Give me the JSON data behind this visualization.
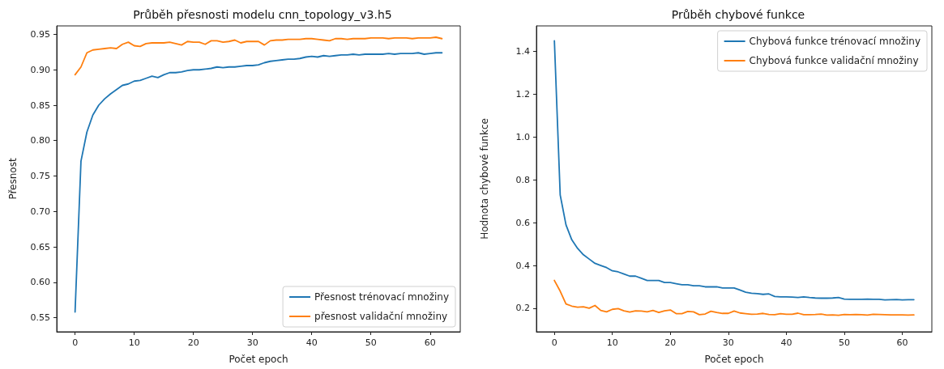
{
  "chart_data": [
    {
      "type": "line",
      "title": "Průběh přesnosti modelu cnn_topology_v3.h5",
      "xlabel": "Počet epoch",
      "ylabel": "Přesnost",
      "x": [
        0,
        1,
        2,
        3,
        4,
        5,
        6,
        7,
        8,
        9,
        10,
        11,
        12,
        13,
        14,
        15,
        16,
        17,
        18,
        19,
        20,
        21,
        22,
        23,
        24,
        25,
        26,
        27,
        28,
        29,
        30,
        31,
        32,
        33,
        34,
        35,
        36,
        37,
        38,
        39,
        40,
        41,
        42,
        43,
        44,
        45,
        46,
        47,
        48,
        49,
        50,
        51,
        52,
        53,
        54,
        55,
        56,
        57,
        58,
        59,
        60,
        61,
        62
      ],
      "series": [
        {
          "name": "Přesnost trénovací množiny",
          "color": "#1f77b4",
          "values": [
            0.558,
            0.771,
            0.812,
            0.836,
            0.85,
            0.859,
            0.866,
            0.872,
            0.878,
            0.88,
            0.884,
            0.885,
            0.888,
            0.891,
            0.889,
            0.893,
            0.896,
            0.896,
            0.897,
            0.899,
            0.9,
            0.9,
            0.901,
            0.902,
            0.904,
            0.903,
            0.904,
            0.904,
            0.905,
            0.906,
            0.906,
            0.907,
            0.91,
            0.912,
            0.913,
            0.914,
            0.915,
            0.915,
            0.916,
            0.918,
            0.919,
            0.918,
            0.92,
            0.919,
            0.92,
            0.921,
            0.921,
            0.922,
            0.921,
            0.922,
            0.922,
            0.922,
            0.922,
            0.923,
            0.922,
            0.923,
            0.923,
            0.923,
            0.924,
            0.922,
            0.923,
            0.924,
            0.924
          ]
        },
        {
          "name": "přesnost validační množiny",
          "color": "#ff7f0e",
          "values": [
            0.893,
            0.904,
            0.924,
            0.928,
            0.929,
            0.93,
            0.931,
            0.93,
            0.936,
            0.939,
            0.934,
            0.933,
            0.937,
            0.938,
            0.938,
            0.938,
            0.939,
            0.937,
            0.935,
            0.94,
            0.939,
            0.939,
            0.936,
            0.941,
            0.941,
            0.939,
            0.94,
            0.942,
            0.938,
            0.94,
            0.94,
            0.94,
            0.935,
            0.941,
            0.942,
            0.942,
            0.943,
            0.943,
            0.943,
            0.944,
            0.944,
            0.943,
            0.942,
            0.941,
            0.944,
            0.944,
            0.943,
            0.944,
            0.944,
            0.944,
            0.945,
            0.945,
            0.945,
            0.944,
            0.945,
            0.945,
            0.945,
            0.944,
            0.945,
            0.945,
            0.945,
            0.946,
            0.944
          ]
        }
      ],
      "xlim": [
        -3.1,
        65.1
      ],
      "xticks": [
        0,
        10,
        20,
        30,
        40,
        50,
        60
      ],
      "ylim": [
        0.53,
        0.962
      ],
      "yticks": [
        0.55,
        {
          "value": 0.6,
          "label": "0.60"
        },
        0.65,
        {
          "value": 0.7,
          "label": "0.70"
        },
        0.75,
        {
          "value": 0.8,
          "label": "0.80"
        },
        0.85,
        {
          "value": 0.9,
          "label": "0.90"
        },
        0.95
      ],
      "grid": false,
      "legend": "bottom right",
      "marker": "none",
      "line_style": "solid"
    },
    {
      "type": "line",
      "title": "Průběh chybové funkce",
      "xlabel": "Počet epoch",
      "ylabel": "Hodnota chybové funkce",
      "x": [
        0,
        1,
        2,
        3,
        4,
        5,
        6,
        7,
        8,
        9,
        10,
        11,
        12,
        13,
        14,
        15,
        16,
        17,
        18,
        19,
        20,
        21,
        22,
        23,
        24,
        25,
        26,
        27,
        28,
        29,
        30,
        31,
        32,
        33,
        34,
        35,
        36,
        37,
        38,
        39,
        40,
        41,
        42,
        43,
        44,
        45,
        46,
        47,
        48,
        49,
        50,
        51,
        52,
        53,
        54,
        55,
        56,
        57,
        58,
        59,
        60,
        61,
        62
      ],
      "series": [
        {
          "name": "Chybová funkce trénovací množiny",
          "color": "#1f77b4",
          "values": [
            1.45,
            0.73,
            0.59,
            0.52,
            0.48,
            0.45,
            0.43,
            0.41,
            0.4,
            0.39,
            0.375,
            0.37,
            0.36,
            0.35,
            0.35,
            0.34,
            0.33,
            0.33,
            0.33,
            0.32,
            0.32,
            0.315,
            0.31,
            0.31,
            0.305,
            0.305,
            0.3,
            0.3,
            0.3,
            0.295,
            0.295,
            0.295,
            0.285,
            0.275,
            0.27,
            0.268,
            0.265,
            0.267,
            0.255,
            0.253,
            0.253,
            0.252,
            0.25,
            0.253,
            0.25,
            0.248,
            0.247,
            0.247,
            0.248,
            0.25,
            0.243,
            0.242,
            0.242,
            0.242,
            0.243,
            0.242,
            0.242,
            0.239,
            0.24,
            0.241,
            0.239,
            0.24,
            0.24
          ]
        },
        {
          "name": "Chybová funkce validační množiny",
          "color": "#ff7f0e",
          "values": [
            0.33,
            0.28,
            0.22,
            0.21,
            0.205,
            0.207,
            0.2,
            0.213,
            0.19,
            0.183,
            0.195,
            0.198,
            0.188,
            0.182,
            0.188,
            0.187,
            0.183,
            0.19,
            0.18,
            0.188,
            0.192,
            0.175,
            0.175,
            0.185,
            0.183,
            0.17,
            0.173,
            0.186,
            0.18,
            0.176,
            0.176,
            0.187,
            0.178,
            0.175,
            0.172,
            0.173,
            0.176,
            0.171,
            0.17,
            0.175,
            0.172,
            0.172,
            0.177,
            0.17,
            0.17,
            0.171,
            0.173,
            0.168,
            0.169,
            0.167,
            0.171,
            0.17,
            0.171,
            0.17,
            0.168,
            0.172,
            0.171,
            0.17,
            0.169,
            0.169,
            0.169,
            0.168,
            0.169
          ]
        }
      ],
      "xlim": [
        -3.1,
        65.1
      ],
      "xticks": [
        0,
        10,
        20,
        30,
        40,
        50,
        60
      ],
      "ylim": [
        0.09,
        1.52
      ],
      "yticks": [
        0.2,
        0.4,
        0.6,
        0.8,
        {
          "value": 1.0,
          "label": "1.0"
        },
        1.2,
        1.4
      ],
      "grid": false,
      "legend": "top right",
      "marker": "none",
      "line_style": "solid"
    }
  ]
}
